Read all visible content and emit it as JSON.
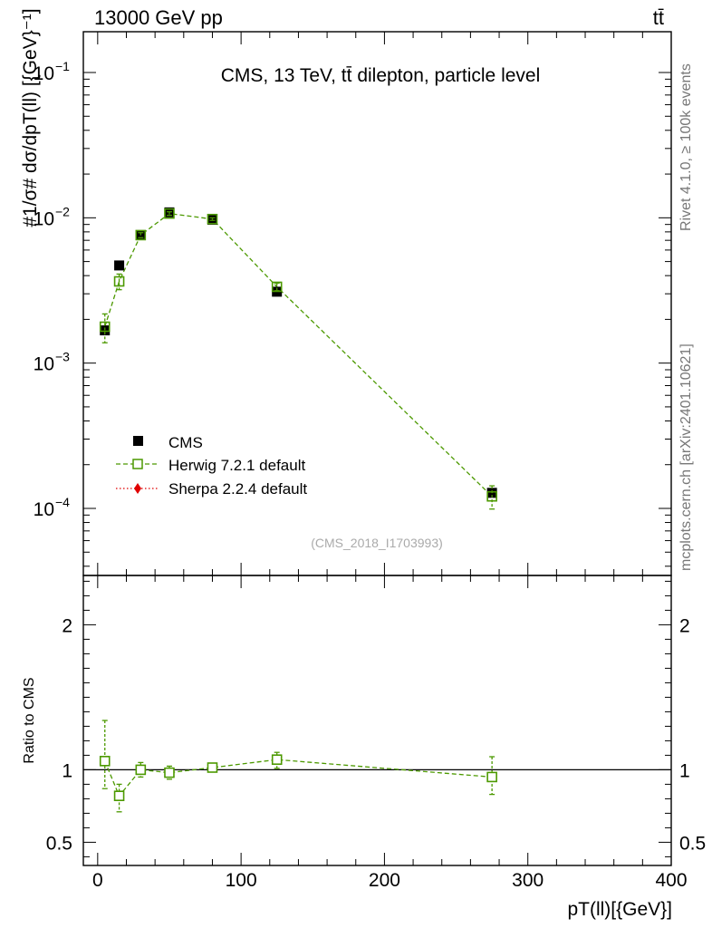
{
  "header": {
    "left": "13000 GeV pp",
    "right": "tt̄"
  },
  "side_labels": {
    "rivet": "Rivet 4.1.0, ≥ 100k events",
    "mcplots": "mcplots.cern.ch [arXiv:2401.10621]"
  },
  "chart_data": [
    {
      "panel": "main",
      "type": "scatter",
      "title": "CMS, 13 TeV, tt̄ dilepton, particle level",
      "watermark": "(CMS_2018_I1703993)",
      "xlim": [
        -10,
        400
      ],
      "ylim": [
        3e-05,
        0.2
      ],
      "yscale": "log",
      "ylabel": "#1/σ# dσ/dpT(ll) [{GeV}⁻¹]",
      "ytick_labels": [
        {
          "value": 0.1,
          "mant": "10",
          "exp": "−1"
        },
        {
          "value": 0.01,
          "mant": "10",
          "exp": "−2"
        },
        {
          "value": 0.001,
          "mant": "10",
          "exp": "−3"
        },
        {
          "value": 0.0001,
          "mant": "10",
          "exp": "−4"
        }
      ],
      "legend": {
        "position": "bottom-left",
        "entries": [
          "CMS",
          "Herwig 7.2.1 default",
          "Sherpa 2.2.4 default"
        ]
      },
      "series": [
        {
          "name": "CMS",
          "color": "#000000",
          "marker": "filled-square",
          "x": [
            5,
            15,
            30,
            50,
            80,
            125,
            275
          ],
          "y": [
            0.00168,
            0.0047,
            0.0076,
            0.0109,
            0.0097,
            0.0031,
            0.000128
          ]
        },
        {
          "name": "Herwig 7.2.1 default",
          "color": "#4c9900",
          "marker": "open-square",
          "line": "dashed",
          "x": [
            5,
            15,
            30,
            50,
            80,
            125,
            275
          ],
          "y": [
            0.00178,
            0.00365,
            0.0076,
            0.0107,
            0.0098,
            0.00335,
            0.000121
          ],
          "yerr_low": [
            0.0004,
            0.00045,
            0.0003,
            0.0003,
            0.0002,
            0.0002,
            2.2e-05
          ],
          "yerr_high": [
            0.0004,
            0.00045,
            0.0003,
            0.0003,
            0.0002,
            0.0002,
            2.2e-05
          ]
        },
        {
          "name": "Sherpa 2.2.4 default",
          "color": "#e00000",
          "marker": "filled-diamond",
          "line": "dotted",
          "x": [],
          "y": []
        }
      ]
    },
    {
      "panel": "ratio",
      "type": "scatter",
      "ylabel": "Ratio to CMS",
      "xlabel": "pT(ll)[{GeV}]",
      "xlim": [
        -10,
        400
      ],
      "ylim": [
        0.34,
        2.34
      ],
      "x_ticks": [
        0,
        100,
        200,
        300,
        400
      ],
      "y_ticks": [
        0.5,
        1,
        2
      ],
      "y_tick_labels": [
        "0.5",
        "1",
        "2"
      ],
      "reference_line": 1,
      "series": [
        {
          "name": "Herwig 7.2.1 default",
          "color": "#4c9900",
          "marker": "open-square",
          "line": "dashed",
          "x": [
            5,
            15,
            30,
            50,
            80,
            125,
            275
          ],
          "y": [
            1.06,
            0.82,
            1.0,
            0.98,
            1.015,
            1.07,
            0.95
          ],
          "yerr_low": [
            0.19,
            0.11,
            0.05,
            0.045,
            0.03,
            0.06,
            0.12
          ],
          "yerr_high": [
            0.28,
            0.08,
            0.05,
            0.045,
            0.03,
            0.05,
            0.14
          ]
        }
      ]
    }
  ]
}
